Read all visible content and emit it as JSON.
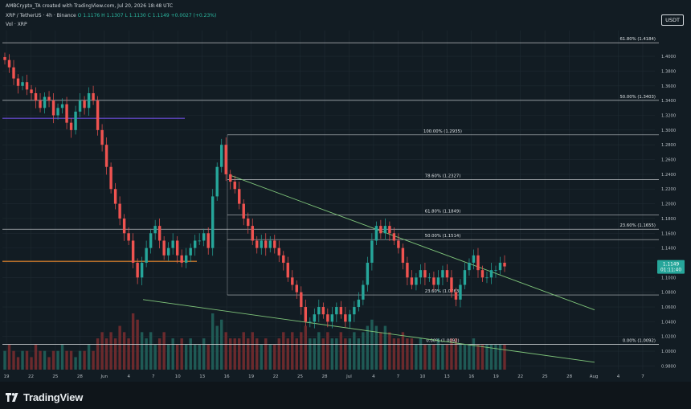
{
  "header": {
    "created_by": "AMBCrypto_TA created with TradingView.com, Jul 20, 2026 18:48 UTC",
    "symbol_line": "XRP / TetherUS · 4h · Binance",
    "ohlc": "O 1.1176  H 1.1307  L 1.1130  C 1.1149  +0.0027 (+0.23%)",
    "vol_line": "Vol · XRP",
    "currency_badge": "USDT"
  },
  "footer": {
    "brand": "TradingView"
  },
  "colors": {
    "background": "#121c23",
    "bull": "#26a69a",
    "bear": "#ef5350",
    "trendline": "#7fc57a",
    "level": "#d9dde0"
  },
  "chart_data": {
    "type": "candlestick",
    "x_ticks": [
      "19",
      "22",
      "25",
      "28",
      "Jun",
      "4",
      "7",
      "10",
      "13",
      "16",
      "19",
      "22",
      "25",
      "28",
      "Jul",
      "4",
      "7",
      "10",
      "13",
      "16",
      "19",
      "22",
      "25",
      "28",
      "Aug",
      "4",
      "7"
    ],
    "y_ticks": [
      "1.4000",
      "1.3800",
      "1.3600",
      "1.3400",
      "1.3200",
      "1.3000",
      "1.2800",
      "1.2600",
      "1.2400",
      "1.2200",
      "1.2000",
      "1.1800",
      "1.1600",
      "1.1400",
      "1.1200",
      "1.1000",
      "1.0800",
      "1.0600",
      "1.0400",
      "1.0200",
      "1.0000",
      "0.9800"
    ],
    "ylim": [
      0.975,
      1.435
    ],
    "last_price": "1.1149",
    "countdown": "01:11:40",
    "fib_levels": [
      {
        "label": "61.80% (1.4184)",
        "value": 1.4184
      },
      {
        "label": "50.00% (1.3403)",
        "value": 1.3403
      },
      {
        "label": "100.00% (1.2935)",
        "value": 1.2935
      },
      {
        "label": "78.60% (1.2327)",
        "value": 1.2327
      },
      {
        "label": "61.80% (1.1849)",
        "value": 1.1849
      },
      {
        "label": "23.60% (1.1655)",
        "value": 1.1655
      },
      {
        "label": "50.00% (1.1514)",
        "value": 1.1514
      },
      {
        "label": "23.60% (1.0763)",
        "value": 1.0763
      },
      {
        "label": "0.00% (1.0092)",
        "value": 1.0092
      },
      {
        "label": "0.00% (1.0092)",
        "value": 1.0092
      }
    ],
    "close_series": [
      1.395,
      1.385,
      1.37,
      1.36,
      1.365,
      1.355,
      1.35,
      1.34,
      1.33,
      1.345,
      1.34,
      1.32,
      1.33,
      1.335,
      1.31,
      1.3,
      1.325,
      1.34,
      1.33,
      1.35,
      1.34,
      1.3,
      1.28,
      1.25,
      1.22,
      1.2,
      1.18,
      1.16,
      1.15,
      1.12,
      1.1,
      1.12,
      1.14,
      1.16,
      1.17,
      1.15,
      1.13,
      1.14,
      1.15,
      1.13,
      1.12,
      1.13,
      1.14,
      1.15,
      1.15,
      1.16,
      1.14,
      1.21,
      1.25,
      1.28,
      1.24,
      1.23,
      1.22,
      1.2,
      1.18,
      1.17,
      1.15,
      1.14,
      1.15,
      1.14,
      1.15,
      1.14,
      1.13,
      1.12,
      1.1,
      1.09,
      1.08,
      1.06,
      1.04,
      1.04,
      1.05,
      1.06,
      1.05,
      1.04,
      1.05,
      1.06,
      1.05,
      1.04,
      1.05,
      1.06,
      1.07,
      1.09,
      1.12,
      1.15,
      1.17,
      1.16,
      1.17,
      1.16,
      1.15,
      1.14,
      1.12,
      1.1,
      1.09,
      1.1,
      1.11,
      1.1,
      1.1,
      1.09,
      1.1,
      1.11,
      1.1,
      1.08,
      1.07,
      1.09,
      1.11,
      1.12,
      1.13,
      1.11,
      1.1,
      1.1,
      1.11,
      1.11,
      1.12,
      1.115
    ],
    "volume_series": [
      3,
      4,
      3,
      2,
      3,
      3,
      2,
      4,
      3,
      3,
      2,
      3,
      3,
      4,
      3,
      3,
      2,
      3,
      3,
      4,
      3,
      5,
      6,
      5,
      6,
      5,
      7,
      6,
      5,
      9,
      8,
      6,
      5,
      6,
      4,
      5,
      6,
      4,
      5,
      4,
      5,
      4,
      5,
      4,
      4,
      5,
      4,
      9,
      7,
      8,
      6,
      5,
      5,
      5,
      6,
      5,
      6,
      5,
      4,
      5,
      4,
      4,
      5,
      6,
      5,
      6,
      5,
      6,
      7,
      5,
      5,
      6,
      5,
      6,
      5,
      5,
      6,
      5,
      5,
      6,
      5,
      6,
      7,
      8,
      7,
      6,
      7,
      6,
      5,
      5,
      6,
      5,
      5,
      4,
      5,
      4,
      4,
      4,
      5,
      4,
      4,
      5,
      5,
      4,
      4,
      4,
      5,
      4,
      4,
      4,
      4,
      4,
      4,
      4
    ]
  }
}
